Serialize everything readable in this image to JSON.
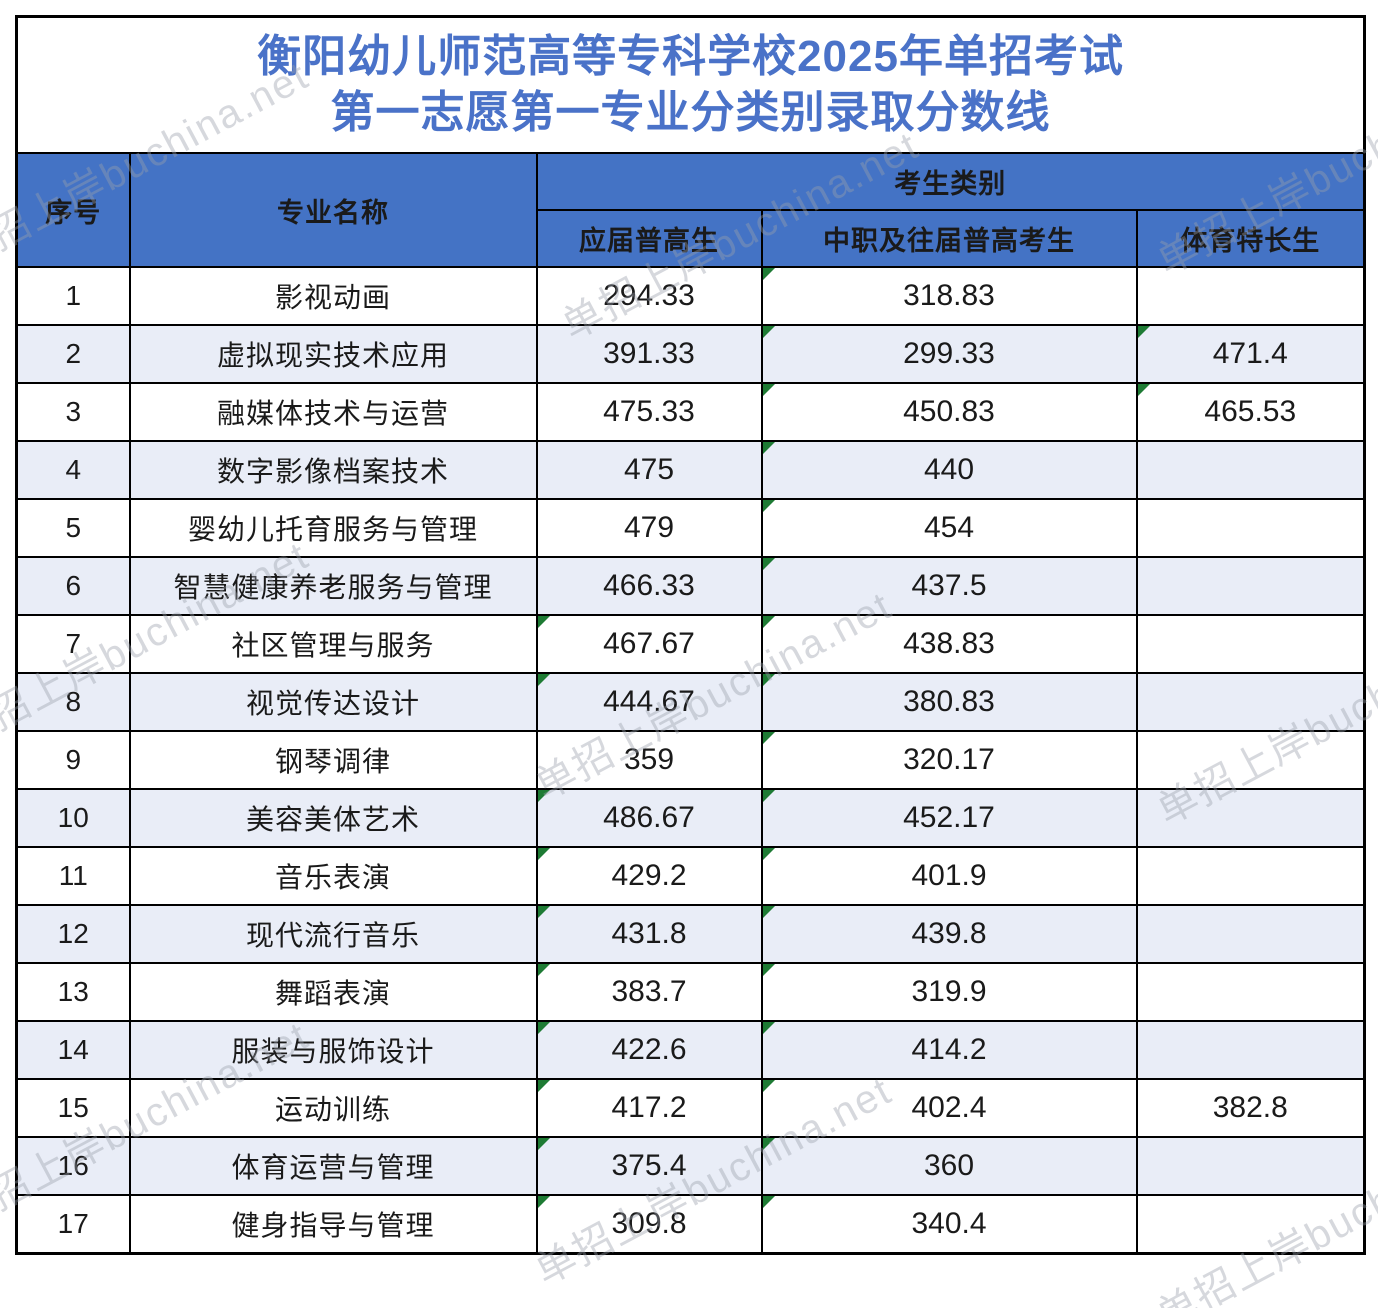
{
  "title": {
    "line1": "衡阳幼儿师范高等专科学校2025年单招考试",
    "line2": "第一志愿第一专业分类别录取分数线"
  },
  "watermark": {
    "text": "单招上岸buchina.net"
  },
  "colors": {
    "header_blue": "#4473C5",
    "title_blue": "#4A72C8",
    "stripe_blue": "#E9EDF7",
    "border_black": "#000000",
    "triangle_green": "#1E7B34",
    "text_black": "#1a1a1a",
    "watermark_gray": "#9aa0ab"
  },
  "table": {
    "headers": {
      "col_no": "序号",
      "col_major": "专业名称",
      "col_category_group": "考生类别",
      "col_cat1": "应届普高生",
      "col_cat2": "中职及往届普高考生",
      "col_cat3": "体育特长生"
    },
    "rows": [
      {
        "no": "1",
        "major": "影视动画",
        "cat1": "294.33",
        "cat2": "318.83",
        "cat3": "",
        "flags": [
          "cat2"
        ]
      },
      {
        "no": "2",
        "major": "虚拟现实技术应用",
        "cat1": "391.33",
        "cat2": "299.33",
        "cat3": "471.4",
        "flags": [
          "cat2",
          "cat3"
        ]
      },
      {
        "no": "3",
        "major": "融媒体技术与运营",
        "cat1": "475.33",
        "cat2": "450.83",
        "cat3": "465.53",
        "flags": [
          "cat2",
          "cat3"
        ]
      },
      {
        "no": "4",
        "major": "数字影像档案技术",
        "cat1": "475",
        "cat2": "440",
        "cat3": "",
        "flags": [
          "cat2"
        ]
      },
      {
        "no": "5",
        "major": "婴幼儿托育服务与管理",
        "cat1": "479",
        "cat2": "454",
        "cat3": "",
        "flags": [
          "cat2"
        ]
      },
      {
        "no": "6",
        "major": "智慧健康养老服务与管理",
        "cat1": "466.33",
        "cat2": "437.5",
        "cat3": "",
        "flags": [
          "cat2"
        ]
      },
      {
        "no": "7",
        "major": "社区管理与服务",
        "cat1": "467.67",
        "cat2": "438.83",
        "cat3": "",
        "flags": [
          "cat1",
          "cat2"
        ]
      },
      {
        "no": "8",
        "major": "视觉传达设计",
        "cat1": "444.67",
        "cat2": "380.83",
        "cat3": "",
        "flags": [
          "cat1",
          "cat2"
        ]
      },
      {
        "no": "9",
        "major": "钢琴调律",
        "cat1": "359",
        "cat2": "320.17",
        "cat3": "",
        "flags": [
          "cat2"
        ]
      },
      {
        "no": "10",
        "major": "美容美体艺术",
        "cat1": "486.67",
        "cat2": "452.17",
        "cat3": "",
        "flags": [
          "cat1",
          "cat2"
        ]
      },
      {
        "no": "11",
        "major": "音乐表演",
        "cat1": "429.2",
        "cat2": "401.9",
        "cat3": "",
        "flags": [
          "cat1",
          "cat2"
        ]
      },
      {
        "no": "12",
        "major": "现代流行音乐",
        "cat1": "431.8",
        "cat2": "439.8",
        "cat3": "",
        "flags": [
          "cat1",
          "cat2"
        ]
      },
      {
        "no": "13",
        "major": "舞蹈表演",
        "cat1": "383.7",
        "cat2": "319.9",
        "cat3": "",
        "flags": [
          "cat1",
          "cat2"
        ]
      },
      {
        "no": "14",
        "major": "服装与服饰设计",
        "cat1": "422.6",
        "cat2": "414.2",
        "cat3": "",
        "flags": [
          "cat1",
          "cat2"
        ]
      },
      {
        "no": "15",
        "major": "运动训练",
        "cat1": "417.2",
        "cat2": "402.4",
        "cat3": "382.8",
        "flags": [
          "cat1",
          "cat2"
        ]
      },
      {
        "no": "16",
        "major": "体育运营与管理",
        "cat1": "375.4",
        "cat2": "360",
        "cat3": "",
        "flags": [
          "cat1",
          "cat2"
        ]
      },
      {
        "no": "17",
        "major": "健身指导与管理",
        "cat1": "309.8",
        "cat2": "340.4",
        "cat3": "",
        "flags": [
          "cat1",
          "cat2"
        ]
      }
    ]
  }
}
